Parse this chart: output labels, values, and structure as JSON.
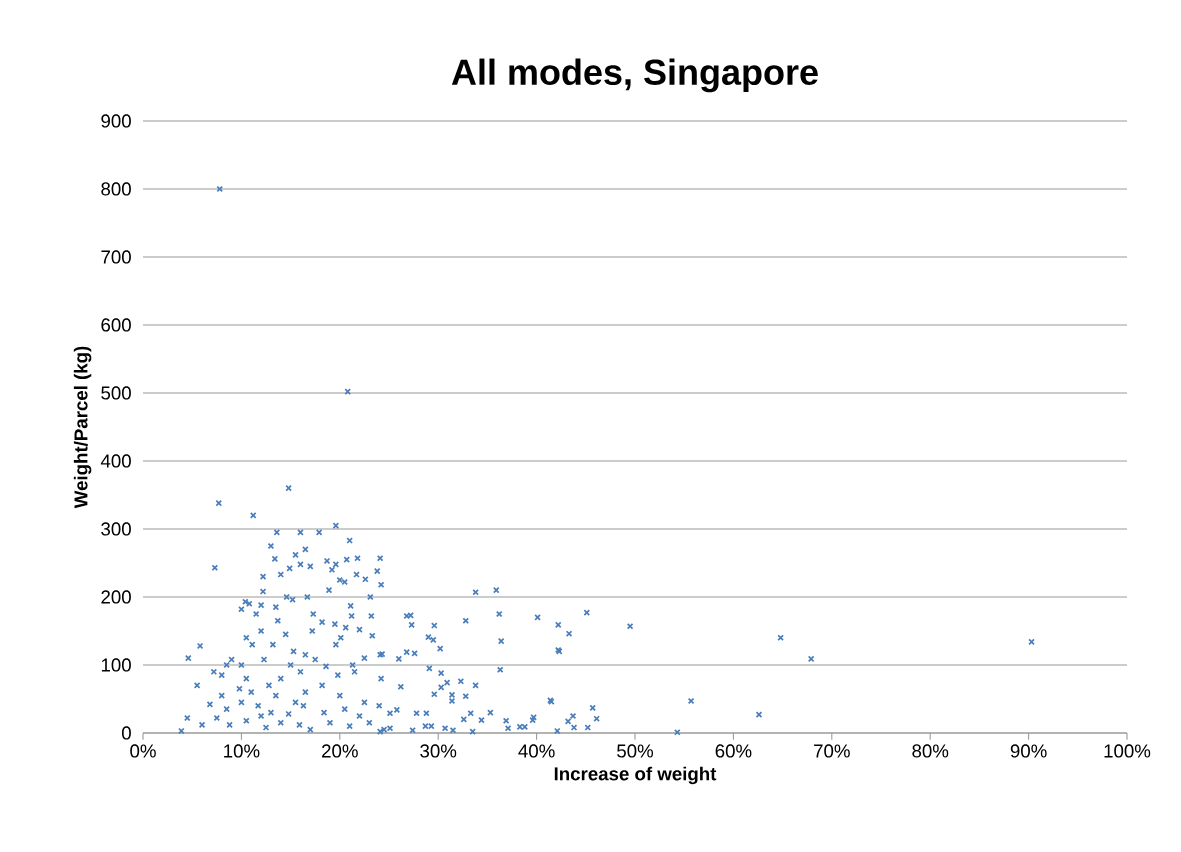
{
  "chart_data": {
    "type": "scatter",
    "title": "All modes, Singapore",
    "xlabel": "Increase of weight",
    "ylabel": "Weight/Parcel (kg)",
    "color": "#4a7ebb",
    "marker": "cross",
    "grid": "y",
    "xlim": [
      0,
      100
    ],
    "ylim": [
      0,
      900
    ],
    "xticks": [
      {
        "value": 0,
        "label": "0%"
      },
      {
        "value": 10,
        "label": "10%"
      },
      {
        "value": 20,
        "label": "20%"
      },
      {
        "value": 30,
        "label": "30%"
      },
      {
        "value": 40,
        "label": "40%"
      },
      {
        "value": 50,
        "label": "50%"
      },
      {
        "value": 60,
        "label": "60%"
      },
      {
        "value": 70,
        "label": "70%"
      },
      {
        "value": 80,
        "label": "80%"
      },
      {
        "value": 90,
        "label": "90%"
      },
      {
        "value": 100,
        "label": "100%"
      }
    ],
    "yticks": [
      0,
      100,
      200,
      300,
      400,
      500,
      600,
      700,
      800,
      900
    ],
    "x": [
      7.8,
      20.8,
      7.7,
      14.8,
      11.2,
      7.3,
      19.6,
      21,
      17.9,
      16,
      13.6,
      13,
      16.5,
      13.4,
      21.8,
      24.1,
      20.7,
      18.7,
      15.5,
      14.9,
      16,
      17,
      19.2,
      23.8,
      22.6,
      20,
      24.2,
      20.5,
      12.2,
      14,
      19.6,
      21.7,
      23.1,
      18.9,
      16.7,
      21.1,
      10.4,
      10.8,
      10,
      12.2,
      14.6,
      12,
      13.5,
      15.2,
      17.3,
      11.5,
      13.7,
      18.2,
      19.5,
      21.2,
      23.2,
      20.6,
      22,
      20.1,
      23.3,
      24.1,
      22.5,
      24.2,
      21.3,
      18.6,
      16.5,
      15.3,
      13.2,
      11.1,
      12,
      10.5,
      14.5,
      17.2,
      19.6,
      9,
      8.5,
      8,
      10,
      10.5,
      12.3,
      15,
      17.5,
      19.8,
      21.5,
      16,
      14,
      12.8,
      11,
      9.8,
      8,
      7.2,
      5.8,
      4.6,
      5.5,
      6.8,
      8.5,
      11.7,
      13,
      14.8,
      16.3,
      18.4,
      20,
      22.5,
      24,
      4.5,
      3.9,
      6,
      7.5,
      8.8,
      10.5,
      12.5,
      14,
      15.9,
      17,
      19,
      21,
      23,
      24.5,
      16.5,
      18.2,
      13.5,
      15.5,
      20.5,
      22,
      12,
      10,
      33.8,
      35.9,
      36.2,
      36.4,
      36.3,
      32.8,
      40.1,
      42.2,
      42.2,
      26.8,
      27.2,
      27.3,
      29.6,
      29,
      29.5,
      30.2,
      26,
      26.8,
      27.6,
      24.3,
      29.1,
      30.3,
      30.9,
      32.3,
      33.8,
      30.3,
      29.6,
      31.4,
      31.4,
      32.8,
      26.2,
      35.3,
      33.3,
      39.7,
      41.4,
      34.4,
      36.9,
      37.1,
      38.3,
      38.8,
      33.5,
      31.5,
      30.7,
      29.3,
      28.7,
      27.4,
      25.8,
      25.1,
      27.8,
      28.8,
      32.6,
      25.1,
      24.1,
      43.3,
      42.3,
      45.1,
      49.5,
      64.8,
      67.9,
      90.3,
      41.5,
      39.6,
      42.1,
      43.2,
      43.7,
      43.8,
      45.2,
      45.7,
      46.1,
      54.3,
      55.7,
      62.6
    ],
    "values": [
      800,
      502,
      338,
      360,
      320,
      243,
      305,
      283,
      295,
      295,
      295,
      275,
      270,
      256,
      257,
      257,
      255,
      253,
      262,
      242,
      248,
      245,
      240,
      238,
      226,
      225,
      218,
      222,
      230,
      233,
      248,
      233,
      200,
      210,
      200,
      187,
      193,
      190,
      182,
      208,
      200,
      188,
      185,
      196,
      175,
      175,
      165,
      163,
      160,
      172,
      172,
      155,
      152,
      140,
      143,
      115,
      110,
      80,
      100,
      98,
      115,
      120,
      130,
      130,
      150,
      140,
      145,
      150,
      130,
      108,
      100,
      85,
      100,
      80,
      108,
      100,
      108,
      85,
      90,
      90,
      80,
      70,
      60,
      65,
      55,
      90,
      128,
      110,
      70,
      42,
      35,
      40,
      30,
      28,
      40,
      30,
      55,
      45,
      40,
      22,
      3,
      12,
      22,
      12,
      18,
      8,
      15,
      12,
      5,
      15,
      10,
      15,
      5,
      60,
      70,
      55,
      45,
      35,
      25,
      25,
      45,
      207,
      210,
      175,
      135,
      93,
      165,
      170,
      159,
      122,
      172,
      173,
      159,
      158,
      141,
      137,
      124,
      109,
      119,
      117,
      116,
      95,
      88,
      74,
      76,
      70,
      67,
      57,
      56,
      47,
      54,
      68,
      30,
      29,
      23,
      48,
      19,
      18,
      7,
      9,
      9,
      2,
      4,
      7,
      10,
      10,
      4,
      34,
      29,
      29,
      29,
      20,
      7,
      2,
      146,
      120,
      177,
      157,
      140,
      109,
      134,
      46,
      19,
      3,
      17,
      25,
      8,
      8,
      37,
      21,
      1,
      47,
      27
    ]
  }
}
